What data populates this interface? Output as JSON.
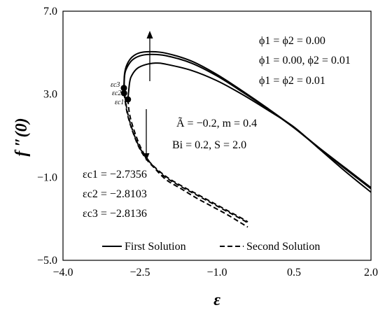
{
  "chart_data": {
    "type": "line",
    "xlabel": "ε",
    "ylabel": "f ″(0)",
    "xlim": [
      -4.0,
      2.0
    ],
    "ylim": [
      -5.0,
      7.0
    ],
    "xticks": [
      "−4.0",
      "−2.5",
      "−1.0",
      "0.5",
      "2.0"
    ],
    "yticks": [
      "−5.0",
      "−1.0",
      "3.0",
      "7.0"
    ],
    "grid": false,
    "legend": {
      "placement": "bottom",
      "entries": [
        {
          "label": "First Solution",
          "style": "solid"
        },
        {
          "label": "Second Solution",
          "style": "dashed"
        }
      ]
    },
    "annotations": {
      "phi_lines": [
        "ϕ1 = ϕ2 = 0.00",
        "ϕ1 = 0.00, ϕ2 = 0.01",
        "ϕ1 = ϕ2 = 0.01"
      ],
      "params": [
        "Ã = −0.2, m = 0.4",
        "Bi = 0.2, S = 2.0"
      ],
      "critical_labels": [
        "εc3",
        "εc2",
        "εc1"
      ],
      "critical_values": [
        "εc1 = −2.7356",
        "εc2 = −2.8103",
        "εc3 = −2.8136"
      ]
    },
    "critical_points": [
      {
        "x": -2.8136,
        "y": 3.3
      },
      {
        "x": -2.8103,
        "y": 3.05
      },
      {
        "x": -2.7356,
        "y": 2.75
      }
    ],
    "series": [
      {
        "style": "solid",
        "x": [
          -2.8136,
          -2.8,
          -2.75,
          -2.65,
          -2.5,
          -2.3,
          -2.0,
          -1.5,
          -1.0,
          -0.5,
          0.0,
          0.5,
          1.0,
          1.5,
          2.0
        ],
        "y": [
          3.3,
          4.0,
          4.45,
          4.8,
          5.0,
          5.05,
          4.98,
          4.6,
          3.95,
          3.15,
          2.3,
          1.4,
          0.4,
          -0.55,
          -1.5
        ]
      },
      {
        "style": "solid",
        "x": [
          -2.8103,
          -2.8,
          -2.75,
          -2.65,
          -2.5,
          -2.3,
          -2.0,
          -1.5,
          -1.0,
          -0.5,
          0.0,
          0.5,
          1.0,
          1.5,
          2.0
        ],
        "y": [
          3.05,
          3.9,
          4.3,
          4.65,
          4.85,
          4.92,
          4.86,
          4.5,
          3.88,
          3.1,
          2.27,
          1.38,
          0.38,
          -0.6,
          -1.55
        ]
      },
      {
        "style": "solid",
        "x": [
          -2.7356,
          -2.7,
          -2.65,
          -2.55,
          -2.4,
          -2.2,
          -2.0,
          -1.5,
          -1.0,
          -0.5,
          0.0,
          0.5,
          1.0,
          1.5,
          2.0
        ],
        "y": [
          2.75,
          3.6,
          3.95,
          4.25,
          4.42,
          4.5,
          4.45,
          4.15,
          3.65,
          2.98,
          2.22,
          1.42,
          0.35,
          -0.72,
          -1.72
        ]
      },
      {
        "style": "dashed",
        "x": [
          -2.8136,
          -2.75,
          -2.65,
          -2.5,
          -2.3,
          -2.0,
          -1.7,
          -1.4,
          -1.1,
          -0.8,
          -0.5,
          -0.4
        ],
        "y": [
          3.3,
          2.2,
          1.3,
          0.4,
          -0.3,
          -0.95,
          -1.4,
          -1.8,
          -2.2,
          -2.6,
          -3.0,
          -3.15
        ]
      },
      {
        "style": "dashed",
        "x": [
          -2.8103,
          -2.75,
          -2.65,
          -2.5,
          -2.3,
          -2.0,
          -1.7,
          -1.4,
          -1.1,
          -0.8,
          -0.5,
          -0.4
        ],
        "y": [
          3.05,
          2.1,
          1.25,
          0.35,
          -0.35,
          -1.0,
          -1.45,
          -1.85,
          -2.25,
          -2.65,
          -3.05,
          -3.2
        ]
      },
      {
        "style": "dashed",
        "x": [
          -2.7356,
          -2.7,
          -2.6,
          -2.45,
          -2.25,
          -2.0,
          -1.7,
          -1.4,
          -1.1,
          -0.8,
          -0.5,
          -0.4
        ],
        "y": [
          2.75,
          2.0,
          1.15,
          0.25,
          -0.45,
          -1.1,
          -1.55,
          -2.0,
          -2.4,
          -2.8,
          -3.25,
          -3.4
        ]
      }
    ]
  }
}
